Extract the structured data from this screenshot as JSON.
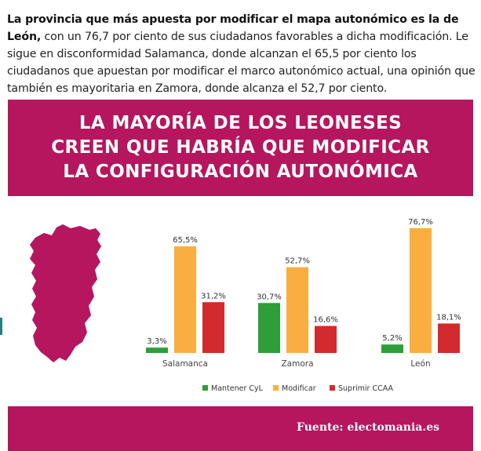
{
  "intro": {
    "bold": "La provincia que más apuesta por modificar el mapa autonómico es la de León,",
    "rest": " con un 76,7 por ciento de sus ciudadanos favorables a dicha modificación. Le sigue en disconformidad Salamanca, donde alcanzan el 65,5 por ciento los ciudadanos que apuestan por modificar el marco autonómico actual, una opinión que también es mayoritaria en Zamora, donde alcanza el 52,7 por ciento."
  },
  "banner": {
    "line1": "LA MAYORÍA DE LOS LEONESES",
    "line2": "CREEN QUE HABRÍA QUE MODIFICAR",
    "line3": "LA CONFIGURACIÓN AUTONÓMICA"
  },
  "colors": {
    "brand": "#b5165e",
    "mantener": "#2e9e3a",
    "modificar": "#fbae40",
    "suprimir": "#d22a2e"
  },
  "chart_data": {
    "type": "bar",
    "categories": [
      "Salamanca",
      "Zamora",
      "León"
    ],
    "series": [
      {
        "name": "Mantener CyL",
        "values": [
          3.3,
          30.7,
          5.2
        ],
        "labels": [
          "3,3%",
          "30,7%",
          "5,2%"
        ]
      },
      {
        "name": "Modificar",
        "values": [
          65.5,
          52.7,
          76.7
        ],
        "labels": [
          "65,5%",
          "52,7%",
          "76,7%"
        ]
      },
      {
        "name": "Suprimir CCAA",
        "values": [
          31.2,
          16.6,
          18.1
        ],
        "labels": [
          "31,2%",
          "16,6%",
          "18,1%"
        ]
      }
    ],
    "ylim": [
      0,
      80
    ],
    "grid": false,
    "legend": "bottom"
  },
  "footer": {
    "source": "Fuente: electomania.es"
  }
}
